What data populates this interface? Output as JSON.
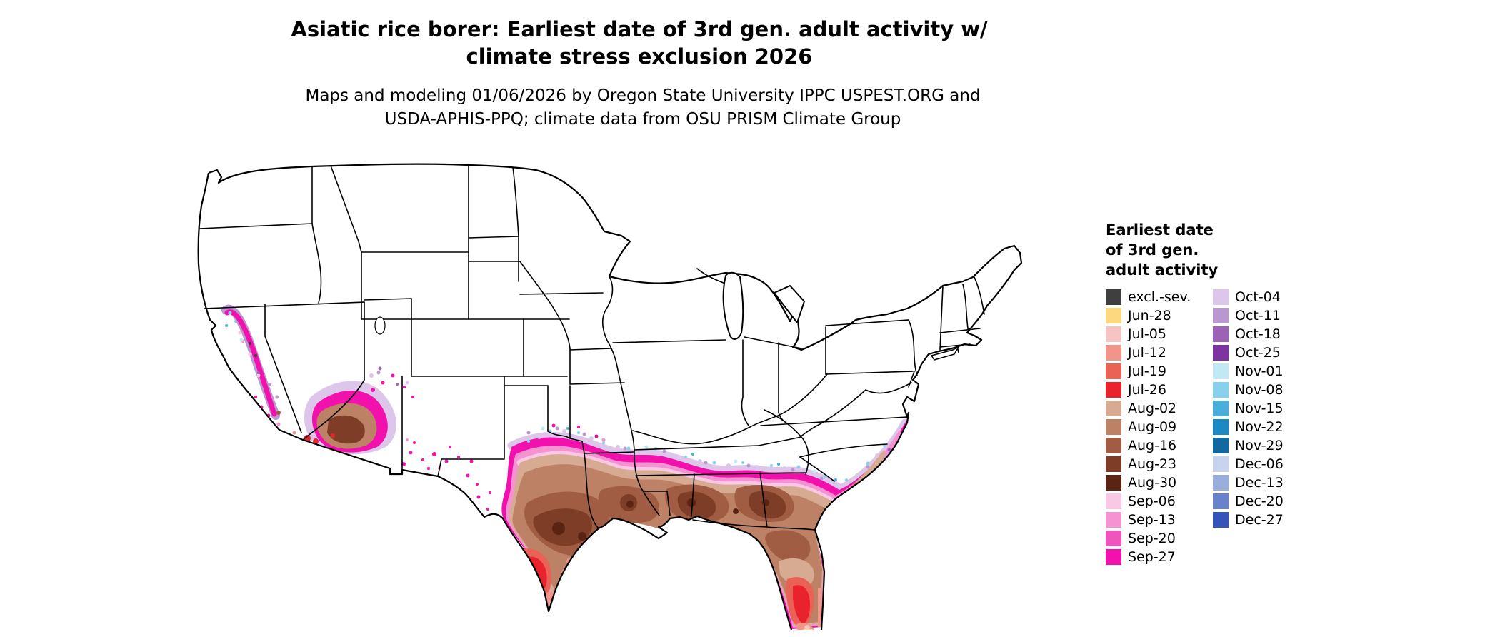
{
  "title": {
    "line1": "Asiatic rice borer: Earliest date of 3rd gen. adult activity w/",
    "line2": "climate stress exclusion 2026"
  },
  "subtitle": {
    "line1": "Maps and modeling 01/06/2026 by Oregon State University IPPC USPEST.ORG and",
    "line2": "USDA-APHIS-PPQ; climate data from OSU PRISM Climate Group"
  },
  "legend": {
    "title_lines": [
      "Earliest date",
      "of 3rd gen.",
      "adult activity"
    ],
    "column1": [
      {
        "label": "excl.-sev.",
        "color": "#3f3f3f"
      },
      {
        "label": "Jun-28",
        "color": "#fdd87c"
      },
      {
        "label": "Jul-05",
        "color": "#f6c5c3"
      },
      {
        "label": "Jul-12",
        "color": "#f1948a"
      },
      {
        "label": "Jul-19",
        "color": "#ea6155"
      },
      {
        "label": "Jul-26",
        "color": "#e8232d"
      },
      {
        "label": "Aug-02",
        "color": "#d6ab92"
      },
      {
        "label": "Aug-09",
        "color": "#bd8266"
      },
      {
        "label": "Aug-16",
        "color": "#a05d44"
      },
      {
        "label": "Aug-23",
        "color": "#7e3d26"
      },
      {
        "label": "Aug-30",
        "color": "#5a2312"
      },
      {
        "label": "Sep-06",
        "color": "#f9c8e4"
      },
      {
        "label": "Sep-13",
        "color": "#f592d2"
      },
      {
        "label": "Sep-20",
        "color": "#ef55bc"
      },
      {
        "label": "Sep-27",
        "color": "#f211ac"
      }
    ],
    "column2": [
      {
        "label": "Oct-04",
        "color": "#dcc7ea"
      },
      {
        "label": "Oct-11",
        "color": "#bb97d2"
      },
      {
        "label": "Oct-18",
        "color": "#9c62b6"
      },
      {
        "label": "Oct-25",
        "color": "#7d33a0"
      },
      {
        "label": "Nov-01",
        "color": "#c0e8f5"
      },
      {
        "label": "Nov-08",
        "color": "#88d1ec"
      },
      {
        "label": "Nov-15",
        "color": "#4aaedb"
      },
      {
        "label": "Nov-22",
        "color": "#1b8ac4"
      },
      {
        "label": "Nov-29",
        "color": "#1169a0"
      },
      {
        "label": "Dec-06",
        "color": "#c8d4ed"
      },
      {
        "label": "Dec-13",
        "color": "#9aaedd"
      },
      {
        "label": "Dec-20",
        "color": "#6784cb"
      },
      {
        "label": "Dec-27",
        "color": "#3355b9"
      }
    ]
  },
  "chart_data": {
    "type": "heatmap",
    "title": "Asiatic rice borer: Earliest date of 3rd gen. adult activity w/ climate stress exclusion 2026",
    "legend_title": "Earliest date of 3rd gen. adult activity",
    "categories": [
      "excl.-sev.",
      "Jun-28",
      "Jul-05",
      "Jul-12",
      "Jul-19",
      "Jul-26",
      "Aug-02",
      "Aug-09",
      "Aug-16",
      "Aug-23",
      "Aug-30",
      "Sep-06",
      "Sep-13",
      "Sep-20",
      "Sep-27",
      "Oct-04",
      "Oct-11",
      "Oct-18",
      "Oct-25",
      "Nov-01",
      "Nov-08",
      "Nov-15",
      "Nov-22",
      "Nov-29",
      "Dec-06",
      "Dec-13",
      "Dec-20",
      "Dec-27"
    ],
    "region_summary": "Conterminous US map; earliest activity (Jul) in far south Texas, south Florida and Yuma AZ; Aug dates across south Texas, Gulf states, north Florida and desert Arizona; Sep dates band through central Texas, the mid-South, Georgia and coastal Carolinas and California Central Valley; Oct lavender/purple fringe plus Nov cyan speckles at northern margin; rest of CONUS no activity (white)."
  }
}
